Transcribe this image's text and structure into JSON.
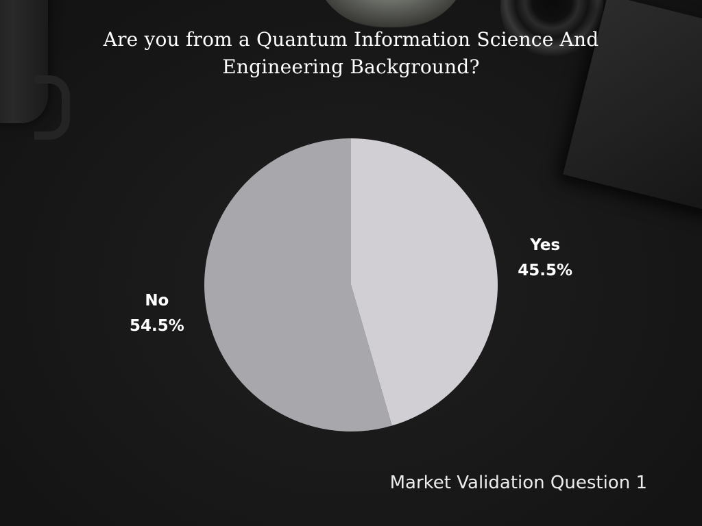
{
  "chart_data": {
    "type": "pie",
    "title": "Are you from a Quantum Information Science And Engineering Background?",
    "categories": [
      "Yes",
      "No"
    ],
    "values": [
      45.5,
      54.5
    ],
    "labels": [
      "45.5%",
      "54.5%"
    ],
    "colors": [
      "#d1cfd4",
      "#a8a7ab"
    ],
    "legend": "none",
    "start_angle": "top",
    "direction": "clockwise"
  },
  "footer": {
    "text": "Market Validation Question 1"
  },
  "decorations": [
    "mug",
    "succulent-plant",
    "camera-lens",
    "notebook"
  ]
}
